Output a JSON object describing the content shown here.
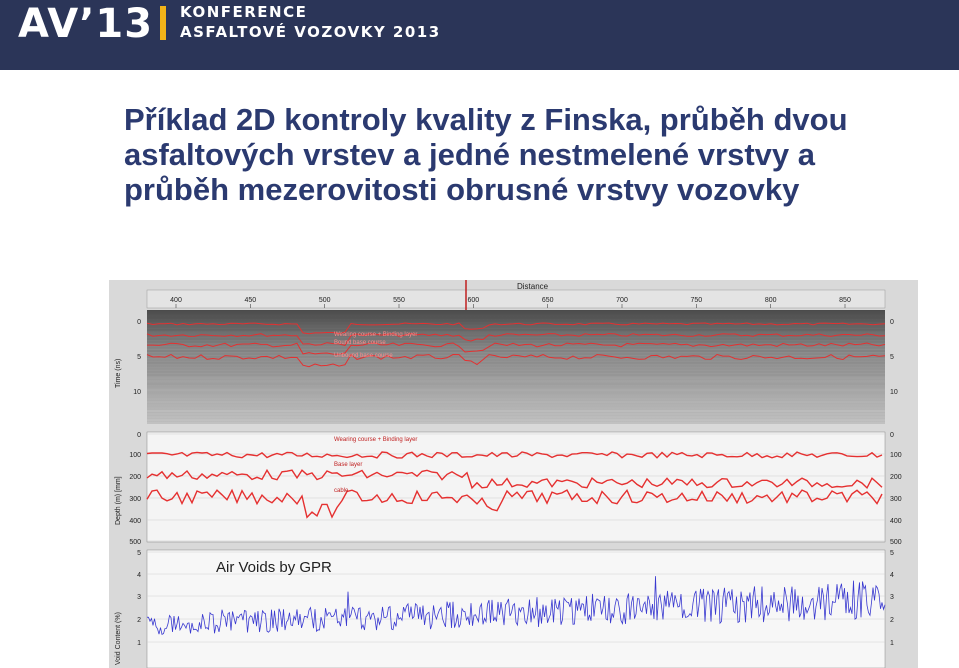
{
  "header": {
    "logo_text": "AV’13",
    "conference_line1": "KONFERENCE",
    "conference_line2": "ASFALTOVÉ VOZOVKY 2013",
    "banner_color": "#2b3558",
    "accent_color": "#f2b318"
  },
  "slide": {
    "title": "Příklad 2D kontroly kvality z Finska, průběh dvou asfaltových vrstev a jedné nestmelené vrstvy a průběh mezerovitosti obrusné vrstvy vozovky",
    "title_color": "#2b3a70"
  },
  "figure": {
    "top_axis_label": "Distance",
    "distance_ticks": [
      "400",
      "450",
      "500",
      "550",
      "600",
      "650",
      "700",
      "750",
      "800",
      "850"
    ],
    "panel1": {
      "ylabel": "Time (ns)",
      "ticks": [
        "0",
        "5",
        "10"
      ],
      "labels": [
        "Wearing course + Binding layer",
        "Bound base course",
        "Unbound base course"
      ]
    },
    "panel2": {
      "ylabel": "Depth (m) [mm]",
      "ticks": [
        "0",
        "100",
        "200",
        "300",
        "400",
        "500"
      ],
      "labels": [
        "Wearing course + Binding layer",
        "Base layer",
        "cable"
      ]
    },
    "panel3": {
      "title": "Air Voids by GPR",
      "ylabel": "Void Content (%)",
      "ticks": [
        "5",
        "4",
        "3",
        "2",
        "1"
      ]
    }
  }
}
